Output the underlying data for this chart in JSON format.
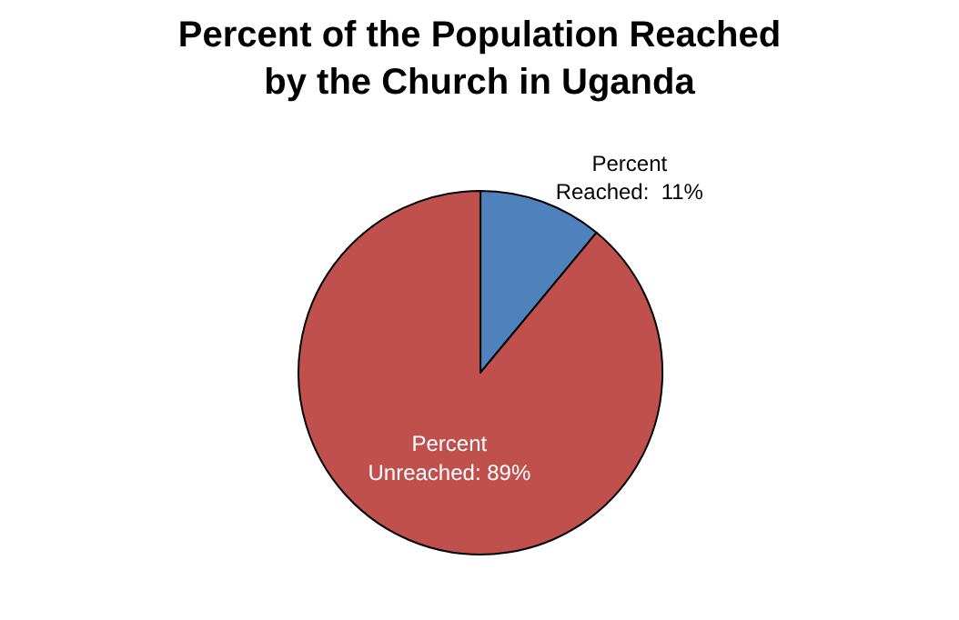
{
  "chart_data": {
    "type": "pie",
    "title": "Percent of the Population Reached\nby the Church in Uganda",
    "categories": [
      "Percent Reached",
      "Percent Unreached"
    ],
    "values": [
      11,
      89
    ],
    "colors": [
      "#4f81bd",
      "#c0504d"
    ],
    "value_labels": [
      "11%",
      "89%"
    ],
    "legend": false
  }
}
